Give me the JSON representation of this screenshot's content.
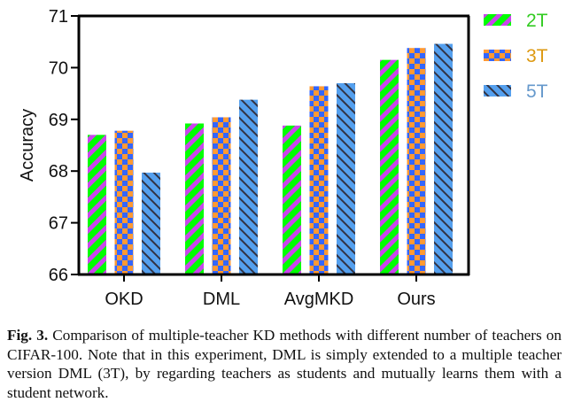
{
  "chart_data": {
    "type": "bar",
    "title": "",
    "xlabel": "",
    "ylabel": "Accuracy",
    "ylim": [
      66,
      71
    ],
    "yticks": [
      66,
      67,
      68,
      69,
      70,
      71
    ],
    "categories": [
      "OKD",
      "DML",
      "AvgMKD",
      "Ours"
    ],
    "series": [
      {
        "name": "2T",
        "values": [
          68.7,
          68.92,
          68.88,
          70.15
        ],
        "pattern": "diagonal-stripes",
        "colors": [
          "#00ff00",
          "#cc44ee"
        ],
        "label_color": "#33cc22"
      },
      {
        "name": "3T",
        "values": [
          68.78,
          69.04,
          69.64,
          70.38
        ],
        "pattern": "checkerboard",
        "colors": [
          "#ff9933",
          "#3366ff"
        ],
        "label_color": "#dd9911"
      },
      {
        "name": "5T",
        "values": [
          67.97,
          69.38,
          69.7,
          70.46
        ],
        "pattern": "back-diagonal-hatch",
        "colors": [
          "#55a0ee",
          "#333344"
        ],
        "label_color": "#6699cc"
      }
    ],
    "legend_position": "right",
    "grid": false
  },
  "caption": {
    "label": "Fig. 3.",
    "text": "Comparison of multiple-teacher KD methods with different number of teachers on CIFAR-100. Note that in this experiment, DML is simply extended to a multiple teacher version DML (3T), by regarding teachers as students and mutually learns them with a student network."
  }
}
